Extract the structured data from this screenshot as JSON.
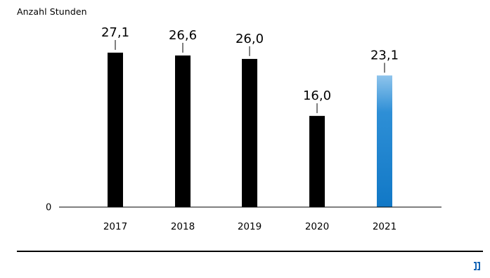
{
  "chart_data": {
    "type": "bar",
    "ylabel": "Anzahl Stunden",
    "categories": [
      "2017",
      "2018",
      "2019",
      "2020",
      "2021"
    ],
    "values": [
      27.1,
      26.6,
      26.0,
      16.0,
      23.1
    ],
    "value_labels": [
      "27,1",
      "26,6",
      "26,0",
      "16,0",
      "23,1"
    ],
    "y_tick_labels": [
      "0"
    ],
    "ylim": [
      0,
      27.1
    ],
    "grid": false,
    "legend": "none",
    "colors": {
      "default_bar": "#000000",
      "highlight_bar_top": "#8fc4ec",
      "highlight_bar_bottom": "#1178c6",
      "highlight_index": 4
    }
  },
  "footer": {
    "mark_color": "#1565b5"
  }
}
